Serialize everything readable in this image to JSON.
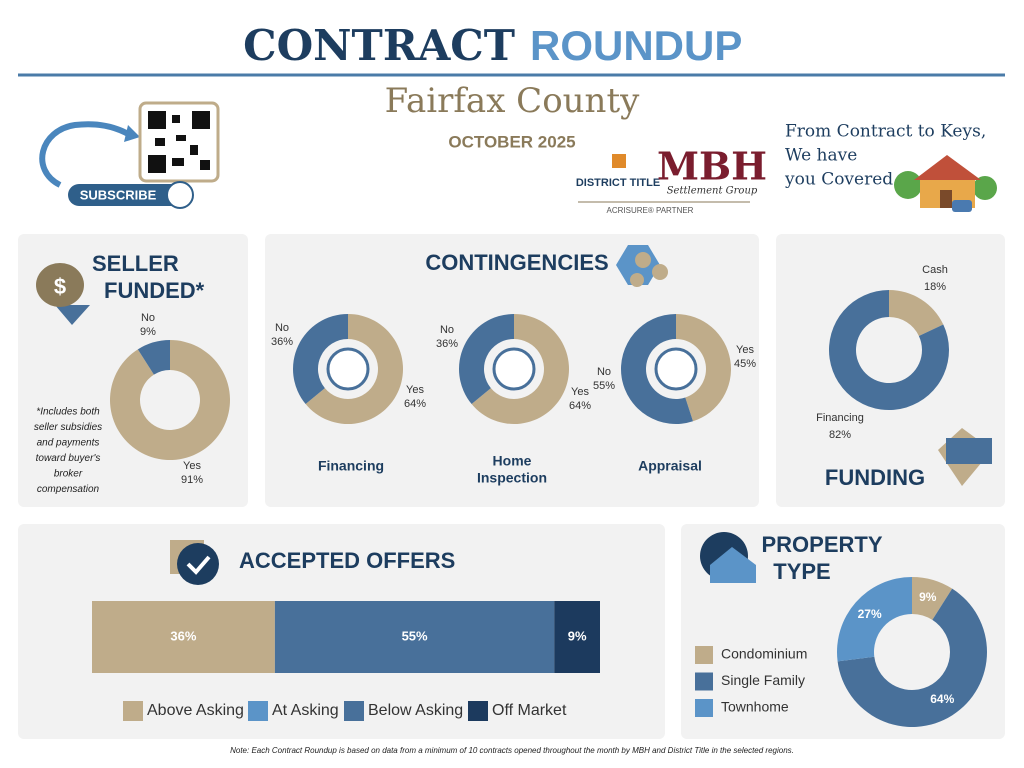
{
  "header": {
    "title": "CONTRACT",
    "title_accent": "ROUNDUP",
    "county": "Fairfax County",
    "period": "OCTOBER 2025",
    "subscribe": "SUBSCRIBE",
    "tagline": [
      "From Contract to Keys,",
      "We have",
      "you Covered"
    ],
    "logos": {
      "district_title": "DISTRICT TITLE",
      "mbh": "MBH",
      "settlement": "Settlement Group",
      "partner": "ACRISURE® PARTNER"
    }
  },
  "sections": {
    "contingencies": "CONTINGENCIES"
  },
  "chart_data": [
    {
      "type": "donut",
      "title": [
        "SELLER",
        "FUNDED*"
      ],
      "categories": [
        "Yes",
        "No"
      ],
      "values": [
        91,
        9
      ],
      "value_labels": [
        "91%",
        "9%"
      ],
      "colors": [
        "#bfac8a",
        "#48709a"
      ],
      "note": [
        "*Includes both",
        "seller subsidies",
        "and payments",
        "toward buyer's",
        "broker",
        "compensation"
      ]
    },
    {
      "type": "donut",
      "title": [
        "Financing"
      ],
      "categories": [
        "Yes",
        "No"
      ],
      "values": [
        64,
        36
      ],
      "value_labels": [
        "64%",
        "36%"
      ],
      "colors": [
        "#bfac8a",
        "#48709a"
      ]
    },
    {
      "type": "donut",
      "title": [
        "Home",
        "Inspection"
      ],
      "categories": [
        "Yes",
        "No"
      ],
      "values": [
        64,
        36
      ],
      "value_labels": [
        "64%",
        "36%"
      ],
      "colors": [
        "#bfac8a",
        "#48709a"
      ]
    },
    {
      "type": "donut",
      "title": [
        "Appraisal"
      ],
      "categories": [
        "Yes",
        "No"
      ],
      "values": [
        45,
        55
      ],
      "value_labels": [
        "45%",
        "55%"
      ],
      "colors": [
        "#bfac8a",
        "#48709a"
      ]
    },
    {
      "type": "donut",
      "title": [
        "FUNDING"
      ],
      "categories": [
        "Cash",
        "Financing"
      ],
      "values": [
        18,
        82
      ],
      "value_labels": [
        "18%",
        "82%"
      ],
      "colors": [
        "#bfac8a",
        "#48709a"
      ]
    },
    {
      "type": "stacked_bar",
      "title": [
        "ACCEPTED OFFERS"
      ],
      "series": [
        {
          "name": "Above Asking",
          "color": "#bfac8a",
          "values": [
            36
          ],
          "value_labels": [
            "36%"
          ]
        },
        {
          "name": "At Asking",
          "color": "#5b94c8",
          "values": [
            null
          ],
          "value_labels": [
            null
          ]
        },
        {
          "name": "Below Asking",
          "color": "#48709a",
          "values": [
            55
          ],
          "value_labels": [
            "55%"
          ]
        },
        {
          "name": "Off Market",
          "color": "#1c3a5e",
          "values": [
            9
          ],
          "value_labels": [
            "9%"
          ]
        }
      ]
    },
    {
      "type": "donut",
      "title": [
        "PROPERTY",
        "TYPE"
      ],
      "categories": [
        "Condominium",
        "Single Family",
        "Townhome"
      ],
      "values": [
        9,
        64,
        27
      ],
      "value_labels": [
        "9%",
        "64%",
        "27%"
      ],
      "colors": [
        "#bfac8a",
        "#48709a",
        "#5b94c8"
      ]
    }
  ],
  "footer": "Note: Each Contract Roundup is based on data from a minimum of 10 contracts opened throughout the month by MBH and District Title in the selected regions."
}
